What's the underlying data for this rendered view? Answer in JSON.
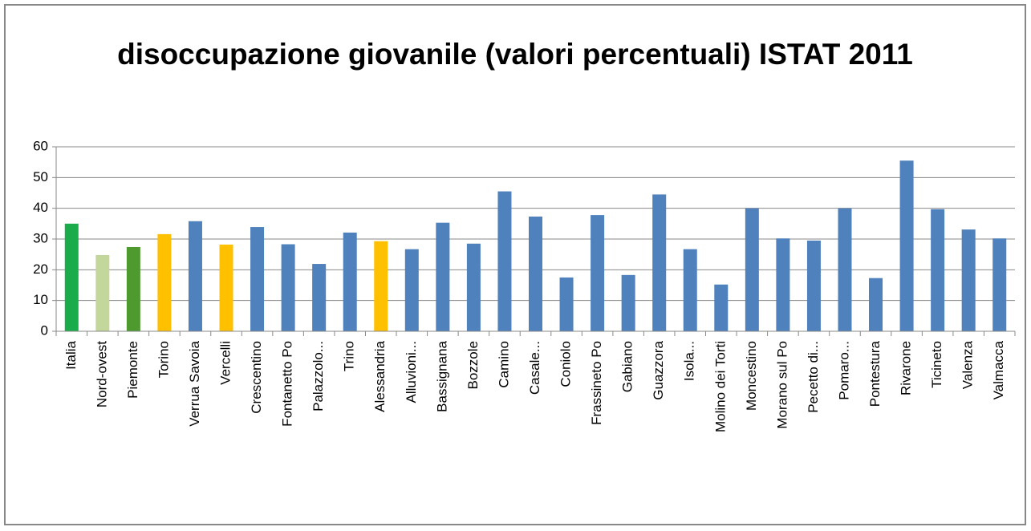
{
  "chart_data": {
    "type": "bar",
    "title": "disoccupazione giovanile (valori percentuali) ISTAT 2011",
    "categories": [
      "Italia",
      "Nord-ovest",
      "Piemonte",
      "Torino",
      "Verrua Savoia",
      "Vercelli",
      "Crescentino",
      "Fontanetto Po",
      "Palazzolo...",
      "Trino",
      "Alessandria",
      "Alluvioni...",
      "Bassignana",
      "Bozzole",
      "Camino",
      "Casale...",
      "Coniolo",
      "Frassineto Po",
      "Gabiano",
      "Guazzora",
      "Isola...",
      "Molino dei Torti",
      "Moncestino",
      "Morano sul Po",
      "Pecetto di...",
      "Pomaro...",
      "Pontestura",
      "Rivarone",
      "Ticineto",
      "Valenza",
      "Valmacca"
    ],
    "values": [
      35,
      24.8,
      27.4,
      31.6,
      35.8,
      28.2,
      33.9,
      28.3,
      21.9,
      32.1,
      29.3,
      26.7,
      35.3,
      28.5,
      45.5,
      37.3,
      17.5,
      37.8,
      18.3,
      44.5,
      26.7,
      15.2,
      40,
      30.2,
      29.5,
      40,
      17.3,
      55.5,
      39.7,
      33.1,
      30.2
    ],
    "colors": [
      "#1aab4b",
      "#c3d69b",
      "#4f9a2f",
      "#ffc000",
      "#4f81bd",
      "#ffc000",
      "#4f81bd",
      "#4f81bd",
      "#4f81bd",
      "#4f81bd",
      "#ffc000",
      "#4f81bd",
      "#4f81bd",
      "#4f81bd",
      "#4f81bd",
      "#4f81bd",
      "#4f81bd",
      "#4f81bd",
      "#4f81bd",
      "#4f81bd",
      "#4f81bd",
      "#4f81bd",
      "#4f81bd",
      "#4f81bd",
      "#4f81bd",
      "#4f81bd",
      "#4f81bd",
      "#4f81bd",
      "#4f81bd",
      "#4f81bd",
      "#4f81bd"
    ],
    "ylim": [
      0,
      60
    ],
    "yticks": [
      0,
      10,
      20,
      30,
      40,
      50,
      60
    ],
    "grid": true
  }
}
